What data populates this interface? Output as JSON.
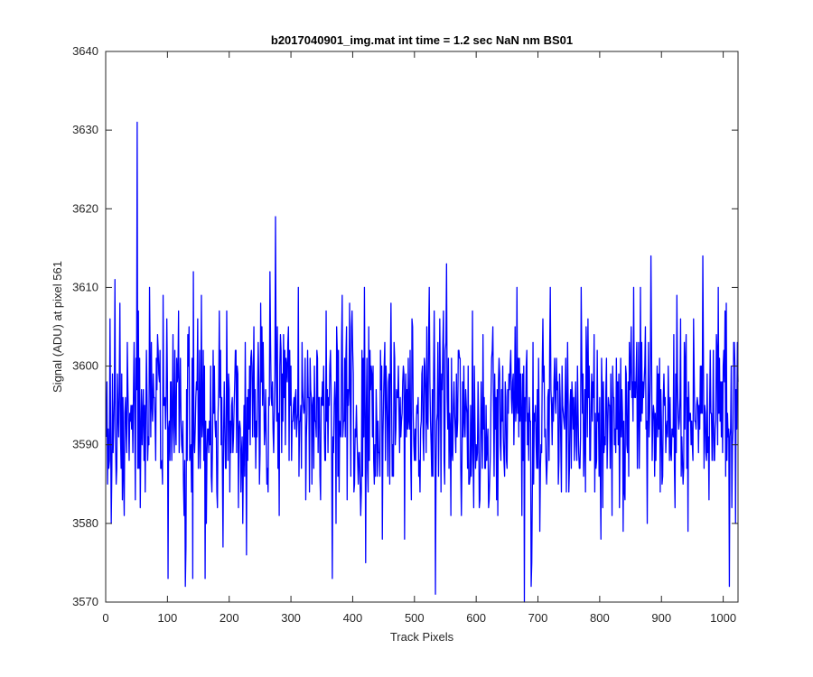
{
  "chart_data": {
    "type": "line",
    "title": "b2017040901_img.mat int time = 1.2 sec  NaN nm BS01",
    "xlabel": "Track Pixels",
    "ylabel": "Signal (ADU) at pixel 561",
    "xlim": [
      0,
      1024
    ],
    "ylim": [
      3570,
      3640
    ],
    "xticks": [
      0,
      100,
      200,
      300,
      400,
      500,
      600,
      700,
      800,
      900,
      1000
    ],
    "yticks": [
      3570,
      3580,
      3590,
      3600,
      3610,
      3620,
      3630,
      3640
    ],
    "grid": false,
    "box": true,
    "series": [
      {
        "color": "#0000ff",
        "mean": 3594,
        "std": 6.5,
        "n_points": 1024,
        "notable_points": [
          {
            "x": 50,
            "y": 3631
          },
          {
            "x": 274,
            "y": 3619
          },
          {
            "x": 14,
            "y": 3611
          },
          {
            "x": 141,
            "y": 3612
          },
          {
            "x": 265,
            "y": 3612
          },
          {
            "x": 551,
            "y": 3613
          },
          {
            "x": 882,
            "y": 3614
          },
          {
            "x": 966,
            "y": 3614
          },
          {
            "x": 533,
            "y": 3571
          },
          {
            "x": 677,
            "y": 3570
          },
          {
            "x": 688,
            "y": 3572
          },
          {
            "x": 128,
            "y": 3572
          },
          {
            "x": 1009,
            "y": 3572
          },
          {
            "x": 100,
            "y": 3573
          },
          {
            "x": 160,
            "y": 3573
          },
          {
            "x": 366,
            "y": 3573
          }
        ]
      }
    ]
  }
}
